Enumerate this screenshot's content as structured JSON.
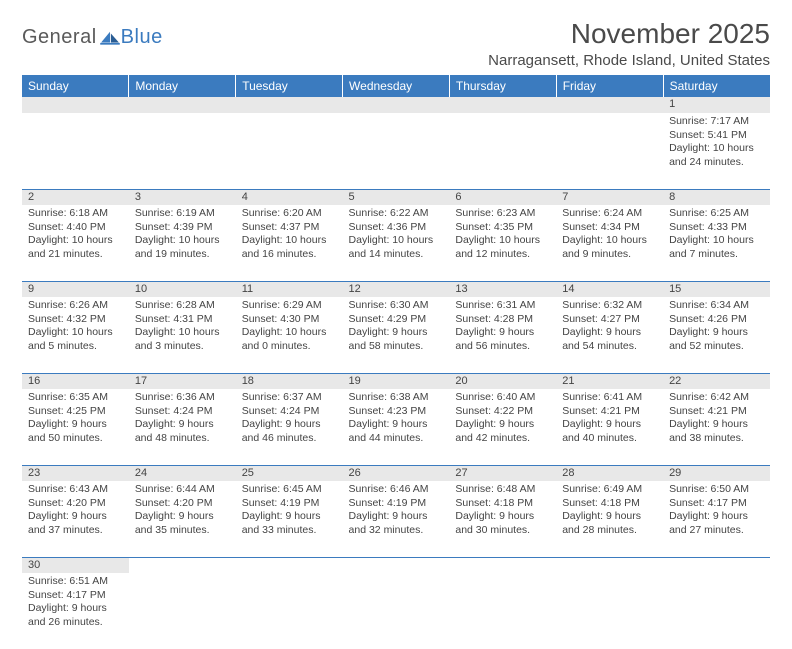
{
  "logo": {
    "text1": "General",
    "text2": "Blue"
  },
  "title": "November 2025",
  "location": "Narragansett, Rhode Island, United States",
  "colors": {
    "header_bg": "#3b7bbf",
    "header_fg": "#ffffff",
    "daynum_bg": "#e8e8e8",
    "border": "#3b7bbf",
    "text": "#444444",
    "logo_gray": "#5a5a5a",
    "logo_blue": "#3b7bbf"
  },
  "weekdays": [
    "Sunday",
    "Monday",
    "Tuesday",
    "Wednesday",
    "Thursday",
    "Friday",
    "Saturday"
  ],
  "weeks": [
    [
      null,
      null,
      null,
      null,
      null,
      null,
      {
        "n": "1",
        "sr": "Sunrise: 7:17 AM",
        "ss": "Sunset: 5:41 PM",
        "dl": "Daylight: 10 hours and 24 minutes."
      }
    ],
    [
      {
        "n": "2",
        "sr": "Sunrise: 6:18 AM",
        "ss": "Sunset: 4:40 PM",
        "dl": "Daylight: 10 hours and 21 minutes."
      },
      {
        "n": "3",
        "sr": "Sunrise: 6:19 AM",
        "ss": "Sunset: 4:39 PM",
        "dl": "Daylight: 10 hours and 19 minutes."
      },
      {
        "n": "4",
        "sr": "Sunrise: 6:20 AM",
        "ss": "Sunset: 4:37 PM",
        "dl": "Daylight: 10 hours and 16 minutes."
      },
      {
        "n": "5",
        "sr": "Sunrise: 6:22 AM",
        "ss": "Sunset: 4:36 PM",
        "dl": "Daylight: 10 hours and 14 minutes."
      },
      {
        "n": "6",
        "sr": "Sunrise: 6:23 AM",
        "ss": "Sunset: 4:35 PM",
        "dl": "Daylight: 10 hours and 12 minutes."
      },
      {
        "n": "7",
        "sr": "Sunrise: 6:24 AM",
        "ss": "Sunset: 4:34 PM",
        "dl": "Daylight: 10 hours and 9 minutes."
      },
      {
        "n": "8",
        "sr": "Sunrise: 6:25 AM",
        "ss": "Sunset: 4:33 PM",
        "dl": "Daylight: 10 hours and 7 minutes."
      }
    ],
    [
      {
        "n": "9",
        "sr": "Sunrise: 6:26 AM",
        "ss": "Sunset: 4:32 PM",
        "dl": "Daylight: 10 hours and 5 minutes."
      },
      {
        "n": "10",
        "sr": "Sunrise: 6:28 AM",
        "ss": "Sunset: 4:31 PM",
        "dl": "Daylight: 10 hours and 3 minutes."
      },
      {
        "n": "11",
        "sr": "Sunrise: 6:29 AM",
        "ss": "Sunset: 4:30 PM",
        "dl": "Daylight: 10 hours and 0 minutes."
      },
      {
        "n": "12",
        "sr": "Sunrise: 6:30 AM",
        "ss": "Sunset: 4:29 PM",
        "dl": "Daylight: 9 hours and 58 minutes."
      },
      {
        "n": "13",
        "sr": "Sunrise: 6:31 AM",
        "ss": "Sunset: 4:28 PM",
        "dl": "Daylight: 9 hours and 56 minutes."
      },
      {
        "n": "14",
        "sr": "Sunrise: 6:32 AM",
        "ss": "Sunset: 4:27 PM",
        "dl": "Daylight: 9 hours and 54 minutes."
      },
      {
        "n": "15",
        "sr": "Sunrise: 6:34 AM",
        "ss": "Sunset: 4:26 PM",
        "dl": "Daylight: 9 hours and 52 minutes."
      }
    ],
    [
      {
        "n": "16",
        "sr": "Sunrise: 6:35 AM",
        "ss": "Sunset: 4:25 PM",
        "dl": "Daylight: 9 hours and 50 minutes."
      },
      {
        "n": "17",
        "sr": "Sunrise: 6:36 AM",
        "ss": "Sunset: 4:24 PM",
        "dl": "Daylight: 9 hours and 48 minutes."
      },
      {
        "n": "18",
        "sr": "Sunrise: 6:37 AM",
        "ss": "Sunset: 4:24 PM",
        "dl": "Daylight: 9 hours and 46 minutes."
      },
      {
        "n": "19",
        "sr": "Sunrise: 6:38 AM",
        "ss": "Sunset: 4:23 PM",
        "dl": "Daylight: 9 hours and 44 minutes."
      },
      {
        "n": "20",
        "sr": "Sunrise: 6:40 AM",
        "ss": "Sunset: 4:22 PM",
        "dl": "Daylight: 9 hours and 42 minutes."
      },
      {
        "n": "21",
        "sr": "Sunrise: 6:41 AM",
        "ss": "Sunset: 4:21 PM",
        "dl": "Daylight: 9 hours and 40 minutes."
      },
      {
        "n": "22",
        "sr": "Sunrise: 6:42 AM",
        "ss": "Sunset: 4:21 PM",
        "dl": "Daylight: 9 hours and 38 minutes."
      }
    ],
    [
      {
        "n": "23",
        "sr": "Sunrise: 6:43 AM",
        "ss": "Sunset: 4:20 PM",
        "dl": "Daylight: 9 hours and 37 minutes."
      },
      {
        "n": "24",
        "sr": "Sunrise: 6:44 AM",
        "ss": "Sunset: 4:20 PM",
        "dl": "Daylight: 9 hours and 35 minutes."
      },
      {
        "n": "25",
        "sr": "Sunrise: 6:45 AM",
        "ss": "Sunset: 4:19 PM",
        "dl": "Daylight: 9 hours and 33 minutes."
      },
      {
        "n": "26",
        "sr": "Sunrise: 6:46 AM",
        "ss": "Sunset: 4:19 PM",
        "dl": "Daylight: 9 hours and 32 minutes."
      },
      {
        "n": "27",
        "sr": "Sunrise: 6:48 AM",
        "ss": "Sunset: 4:18 PM",
        "dl": "Daylight: 9 hours and 30 minutes."
      },
      {
        "n": "28",
        "sr": "Sunrise: 6:49 AM",
        "ss": "Sunset: 4:18 PM",
        "dl": "Daylight: 9 hours and 28 minutes."
      },
      {
        "n": "29",
        "sr": "Sunrise: 6:50 AM",
        "ss": "Sunset: 4:17 PM",
        "dl": "Daylight: 9 hours and 27 minutes."
      }
    ],
    [
      {
        "n": "30",
        "sr": "Sunrise: 6:51 AM",
        "ss": "Sunset: 4:17 PM",
        "dl": "Daylight: 9 hours and 26 minutes."
      },
      null,
      null,
      null,
      null,
      null,
      null
    ]
  ]
}
